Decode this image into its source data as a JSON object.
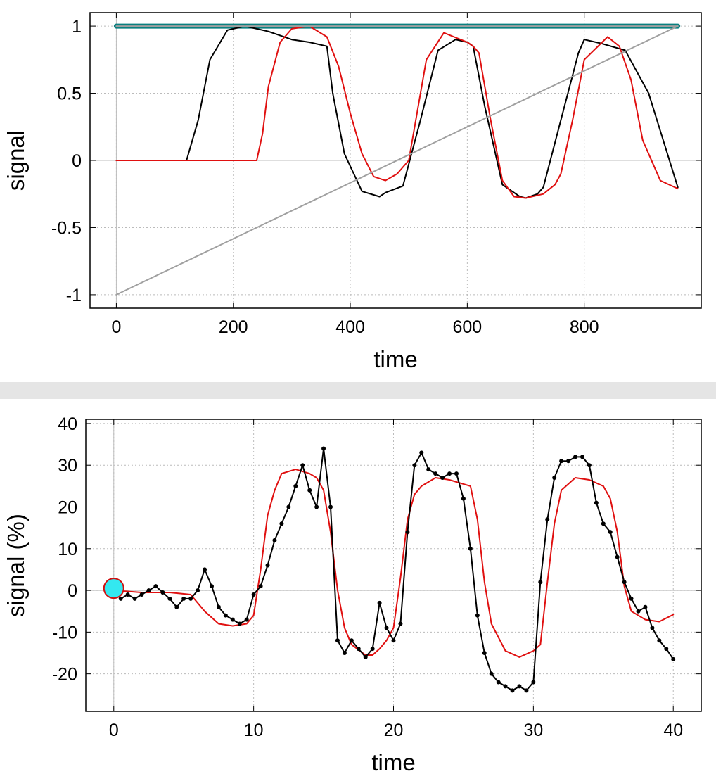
{
  "chart_data": [
    {
      "type": "line",
      "xlabel": "time",
      "ylabel": "signal",
      "xlim": [
        -45,
        1000
      ],
      "ylim": [
        -1.1,
        1.1
      ],
      "xticks": [
        0,
        200,
        400,
        600,
        800
      ],
      "yticks": [
        -1,
        -0.5,
        0,
        0.5,
        1
      ],
      "xtick_labels": [
        "0",
        "200",
        "400",
        "600",
        "800"
      ],
      "ytick_labels": [
        "-1",
        "-0.5",
        "0",
        "0.5",
        "1"
      ],
      "grid": true,
      "colors": {
        "teal": "#0a8080",
        "black": "#000000",
        "red": "#e01010",
        "gray": "#a0a0a0"
      },
      "series": [
        {
          "color": "#0a8080",
          "x": [
            0,
            960
          ],
          "y": [
            1,
            1
          ]
        },
        {
          "color": "#000000",
          "x": [
            0,
            120,
            140,
            160,
            190,
            220,
            260,
            300,
            330,
            360,
            370,
            390,
            420,
            450,
            460,
            490,
            520,
            550,
            580,
            600,
            610,
            630,
            660,
            690,
            700,
            720,
            730,
            760,
            790,
            800,
            830,
            870,
            910,
            960
          ],
          "y": [
            0,
            0,
            0.3,
            0.75,
            0.97,
            1.0,
            0.96,
            0.9,
            0.88,
            0.85,
            0.5,
            0.05,
            -0.23,
            -0.27,
            -0.24,
            -0.19,
            0.3,
            0.82,
            0.9,
            0.88,
            0.85,
            0.4,
            -0.18,
            -0.27,
            -0.28,
            -0.25,
            -0.2,
            0.3,
            0.8,
            0.9,
            0.87,
            0.82,
            0.5,
            -0.2
          ]
        },
        {
          "color": "#e01010",
          "x": [
            0,
            240,
            250,
            260,
            280,
            300,
            330,
            360,
            380,
            400,
            420,
            440,
            460,
            480,
            490,
            500,
            510,
            530,
            560,
            600,
            610,
            620,
            640,
            660,
            680,
            700,
            730,
            750,
            760,
            780,
            800,
            840,
            860,
            880,
            900,
            930,
            960
          ],
          "y": [
            0,
            0,
            0.2,
            0.55,
            0.88,
            0.98,
            1.0,
            0.92,
            0.7,
            0.35,
            0.05,
            -0.12,
            -0.15,
            -0.1,
            -0.05,
            0.0,
            0.25,
            0.75,
            0.95,
            0.88,
            0.85,
            0.8,
            0.3,
            -0.15,
            -0.27,
            -0.28,
            -0.25,
            -0.18,
            -0.1,
            0.3,
            0.75,
            0.92,
            0.85,
            0.6,
            0.15,
            -0.15,
            -0.21
          ]
        },
        {
          "color": "#a0a0a0",
          "x": [
            0,
            960
          ],
          "y": [
            -1,
            1
          ]
        },
        {
          "color": "#a0a0a0",
          "x": [
            0,
            960
          ],
          "y": [
            1,
            1
          ]
        }
      ]
    },
    {
      "type": "line",
      "xlabel": "time",
      "ylabel": "signal (%)",
      "xlim": [
        -2,
        42
      ],
      "ylim": [
        -29,
        41
      ],
      "xticks": [
        0,
        10,
        20,
        30,
        40
      ],
      "yticks": [
        -20,
        -10,
        0,
        10,
        20,
        30,
        40
      ],
      "xtick_labels": [
        "0",
        "10",
        "20",
        "30",
        "40"
      ],
      "ytick_labels": [
        "-20",
        "-10",
        "0",
        "10",
        "20",
        "30",
        "40"
      ],
      "grid": true,
      "marker": {
        "x": 0,
        "y": 0.5,
        "fill": "#33e8f0",
        "stroke": "#d01010"
      },
      "colors": {
        "black": "#000000",
        "red": "#e01010"
      },
      "series": [
        {
          "color": "#e01010",
          "x": [
            0,
            2,
            4,
            5.5,
            6.5,
            7.5,
            8.5,
            9.5,
            10,
            10.5,
            11,
            11.5,
            12,
            13,
            14,
            14.5,
            15,
            15.5,
            16,
            16.5,
            17,
            18,
            18.5,
            19,
            19.5,
            20,
            20.5,
            21,
            21.5,
            22,
            23,
            24,
            25,
            25.5,
            26,
            26.5,
            27,
            28,
            29,
            30,
            30.5,
            31,
            31.5,
            32,
            33,
            34,
            35,
            35.5,
            36,
            36.5,
            37,
            38,
            39,
            40
          ],
          "y": [
            0,
            -0.5,
            -0.5,
            -1,
            -5,
            -8,
            -8.5,
            -8,
            -6,
            5,
            18,
            24,
            28,
            29,
            28,
            27,
            24,
            14,
            0,
            -9,
            -13,
            -15.5,
            -15.5,
            -14,
            -12,
            -9,
            3,
            17,
            23,
            25,
            27,
            26.5,
            25.5,
            25,
            17,
            2,
            -8,
            -14.5,
            -16,
            -14.5,
            -13,
            2,
            16,
            24,
            27,
            26.5,
            25,
            22,
            14,
            1,
            -5,
            -7,
            -7.5,
            -5.8
          ]
        },
        {
          "color": "#000000",
          "x": [
            0,
            0.5,
            1,
            1.5,
            2,
            2.5,
            3,
            3.5,
            4,
            4.5,
            5,
            5.5,
            6,
            6.5,
            7,
            7.5,
            8,
            8.5,
            9,
            9.5,
            10,
            10.5,
            11,
            11.5,
            12,
            12.5,
            13,
            13.5,
            14,
            14.5,
            15,
            15.5,
            16,
            16.5,
            17,
            17.5,
            18,
            18.5,
            19,
            19.5,
            20,
            20.5,
            21,
            21.5,
            22,
            22.5,
            23,
            23.5,
            24,
            24.5,
            25,
            25.5,
            26,
            26.5,
            27,
            27.5,
            28,
            28.5,
            29,
            29.5,
            30,
            30.5,
            31,
            31.5,
            32,
            32.5,
            33,
            33.5,
            34,
            34.5,
            35,
            35.5,
            36,
            36.5,
            37,
            37.5,
            38,
            38.5,
            39,
            39.5,
            40
          ],
          "y": [
            0.5,
            -2,
            -1,
            -2,
            -1,
            0,
            1,
            -0.5,
            -2,
            -4,
            -2,
            -2,
            0,
            5,
            1,
            -4,
            -6,
            -7,
            -8,
            -7,
            -1,
            1,
            6,
            12,
            16,
            20,
            25,
            30,
            24,
            20,
            34,
            20,
            -12,
            -15,
            -12,
            -14,
            -16,
            -14,
            -3,
            -9,
            -12,
            -8,
            14,
            30,
            33,
            29,
            28,
            27,
            28,
            28,
            22,
            10,
            -6,
            -15,
            -20,
            -22,
            -23,
            -24,
            -23,
            -24,
            -22,
            2,
            17,
            27,
            31,
            31,
            32,
            32,
            30,
            21,
            16,
            14,
            8,
            2,
            -2,
            -5,
            -4,
            -9,
            -12,
            -14,
            -16.5
          ]
        }
      ]
    }
  ]
}
